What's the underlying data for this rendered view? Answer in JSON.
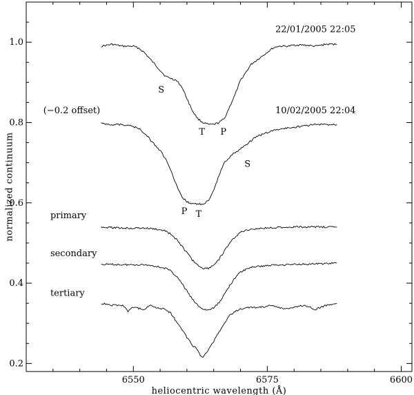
{
  "chart_data": {
    "type": "line",
    "title": "",
    "xlabel": "heliocentric wavelength (Å)",
    "ylabel": "normalized continuum",
    "xlim": [
      6530,
      6602
    ],
    "ylim": [
      0.18,
      1.1
    ],
    "xticks": [
      6550,
      6575,
      6600
    ],
    "yticks": [
      0.2,
      0.4,
      0.6,
      0.8,
      1.0
    ],
    "ytick_labels": [
      "0.2",
      "0.4",
      "0.6",
      "0.8",
      "1.0"
    ],
    "grid": false,
    "series": [
      {
        "key": "spectrum-2005-01-22",
        "x": [
          6544,
          6546,
          6548,
          6550,
          6551,
          6552,
          6553,
          6554,
          6555,
          6556,
          6557,
          6558,
          6559,
          6560,
          6561,
          6562,
          6563,
          6564,
          6565,
          6566,
          6567,
          6568,
          6569,
          6570,
          6571,
          6572,
          6573,
          6574,
          6575,
          6576,
          6577,
          6578,
          6579,
          6580,
          6582,
          6584,
          6586,
          6588
        ],
        "y": [
          0.99,
          0.995,
          0.99,
          0.99,
          0.985,
          0.975,
          0.96,
          0.945,
          0.93,
          0.915,
          0.91,
          0.905,
          0.89,
          0.86,
          0.83,
          0.81,
          0.8,
          0.795,
          0.795,
          0.8,
          0.81,
          0.84,
          0.87,
          0.905,
          0.925,
          0.945,
          0.955,
          0.965,
          0.975,
          0.985,
          0.99,
          0.99,
          0.99,
          0.993,
          0.993,
          0.99,
          0.995,
          0.995
        ]
      },
      {
        "key": "spectrum-2005-02-10",
        "x": [
          6544,
          6546,
          6548,
          6550,
          6551,
          6552,
          6553,
          6554,
          6555,
          6556,
          6557,
          6558,
          6559,
          6560,
          6561,
          6562,
          6563,
          6564,
          6565,
          6566,
          6567,
          6568,
          6569,
          6570,
          6571,
          6572,
          6573,
          6574,
          6575,
          6576,
          6578,
          6580,
          6582,
          6584,
          6586,
          6588
        ],
        "y": [
          0.798,
          0.795,
          0.795,
          0.79,
          0.785,
          0.775,
          0.76,
          0.745,
          0.73,
          0.71,
          0.68,
          0.645,
          0.615,
          0.603,
          0.598,
          0.597,
          0.597,
          0.605,
          0.63,
          0.67,
          0.7,
          0.715,
          0.725,
          0.735,
          0.745,
          0.755,
          0.765,
          0.77,
          0.775,
          0.78,
          0.785,
          0.788,
          0.792,
          0.795,
          0.795,
          0.795
        ]
      },
      {
        "name": "primary",
        "x": [
          6544,
          6548,
          6552,
          6554,
          6556,
          6557,
          6558,
          6559,
          6560,
          6561,
          6562,
          6563,
          6564,
          6565,
          6566,
          6567,
          6568,
          6569,
          6570,
          6572,
          6576,
          6580,
          6584,
          6588
        ],
        "y": [
          0.54,
          0.537,
          0.537,
          0.535,
          0.53,
          0.522,
          0.51,
          0.493,
          0.475,
          0.458,
          0.445,
          0.437,
          0.437,
          0.445,
          0.46,
          0.48,
          0.5,
          0.515,
          0.527,
          0.535,
          0.538,
          0.54,
          0.54,
          0.54
        ]
      },
      {
        "name": "secondary",
        "x": [
          6544,
          6548,
          6552,
          6554,
          6556,
          6557,
          6558,
          6559,
          6560,
          6561,
          6562,
          6563,
          6564,
          6565,
          6566,
          6567,
          6568,
          6569,
          6570,
          6572,
          6576,
          6580,
          6584,
          6588
        ],
        "y": [
          0.447,
          0.446,
          0.446,
          0.443,
          0.437,
          0.43,
          0.418,
          0.4,
          0.38,
          0.36,
          0.345,
          0.335,
          0.333,
          0.338,
          0.352,
          0.372,
          0.395,
          0.413,
          0.428,
          0.44,
          0.445,
          0.447,
          0.448,
          0.45
        ]
      },
      {
        "name": "tertiary",
        "x": [
          6544,
          6546,
          6548,
          6549,
          6550,
          6552,
          6553,
          6554,
          6556,
          6557,
          6558,
          6559,
          6560,
          6561,
          6562,
          6562.5,
          6563,
          6563.5,
          6564,
          6565,
          6566,
          6567,
          6568,
          6569,
          6570,
          6572,
          6574,
          6576,
          6578,
          6580,
          6582,
          6584,
          6586,
          6588
        ],
        "y": [
          0.35,
          0.345,
          0.345,
          0.33,
          0.34,
          0.335,
          0.345,
          0.34,
          0.335,
          0.325,
          0.305,
          0.285,
          0.265,
          0.245,
          0.235,
          0.22,
          0.215,
          0.225,
          0.235,
          0.255,
          0.28,
          0.3,
          0.32,
          0.33,
          0.335,
          0.34,
          0.34,
          0.345,
          0.335,
          0.34,
          0.345,
          0.335,
          0.345,
          0.35
        ]
      }
    ],
    "annotations": [
      {
        "text": "22/01/2005 22:05",
        "x": 6584,
        "y": 1.025,
        "anchor": "middle"
      },
      {
        "text": "10/02/2005 22:04",
        "x": 6584,
        "y": 0.823,
        "anchor": "middle"
      },
      {
        "text": "(−0.2 offset)",
        "x": 6538.5,
        "y": 0.823,
        "anchor": "middle"
      },
      {
        "text": "S",
        "x": 6555.2,
        "y": 0.875,
        "anchor": "middle"
      },
      {
        "text": "T",
        "x": 6562.8,
        "y": 0.77,
        "anchor": "middle"
      },
      {
        "text": "P",
        "x": 6566.8,
        "y": 0.77,
        "anchor": "middle"
      },
      {
        "text": "S",
        "x": 6571.3,
        "y": 0.69,
        "anchor": "middle"
      },
      {
        "text": "P",
        "x": 6559.5,
        "y": 0.572,
        "anchor": "middle"
      },
      {
        "text": "T",
        "x": 6562.2,
        "y": 0.565,
        "anchor": "middle"
      },
      {
        "text": "primary",
        "x": 6534.5,
        "y": 0.562,
        "anchor": "start"
      },
      {
        "text": "secondary",
        "x": 6534.5,
        "y": 0.467,
        "anchor": "start"
      },
      {
        "text": "tertiary",
        "x": 6534.5,
        "y": 0.368,
        "anchor": "start"
      }
    ]
  }
}
